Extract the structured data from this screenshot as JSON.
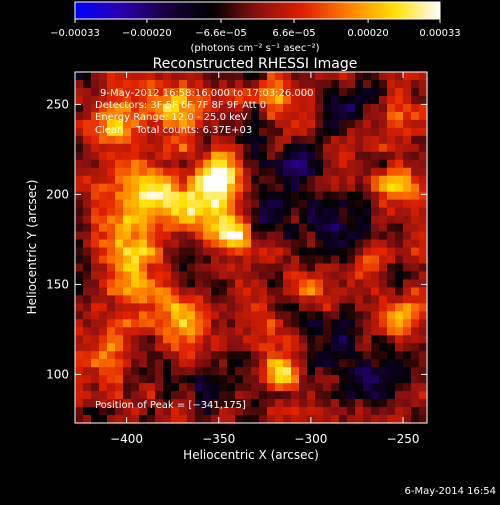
{
  "chart_data": {
    "type": "heatmap",
    "title": "Reconstructed RHESSI Image",
    "xlabel": "Heliocentric X (arcsec)",
    "ylabel": "Heliocentric Y (arcsec)",
    "xlim": [
      -428,
      -237
    ],
    "ylim": [
      73,
      268
    ],
    "xticks": [
      -400,
      -350,
      -300,
      -250
    ],
    "yticks": [
      100,
      150,
      200,
      250
    ],
    "xtick_labels": [
      "−400",
      "−350",
      "−300",
      "−250"
    ],
    "ytick_labels": [
      "100",
      "150",
      "200",
      "250"
    ],
    "colorbar": {
      "range": [
        -0.00033,
        0.00033
      ],
      "ticks": [
        -0.00033,
        -0.0002,
        -6.6e-05,
        6.6e-05,
        0.0002,
        0.00033
      ],
      "tick_labels": [
        "−0.00033",
        "−0.00020",
        "−6.6e−05",
        "6.6e−05",
        "0.00020",
        "0.00033"
      ],
      "unit_label": "(photons cm⁻² s⁻¹ asec⁻²)"
    },
    "annotations": [
      "9-May-2012 16:58:16.000 to 17:03:26.000",
      "Detectors: 3F 5F 6F 7F 8F 9F Att 0",
      "Energy Range: 12.0 - 25.0 keV",
      "Clean    Total counts: 6.37E+03"
    ],
    "peak_label": "Position of Peak = [−341,175]",
    "peak_position": [
      -341,
      175
    ],
    "sources": [
      {
        "x": -342,
        "y": 178,
        "amp": 1.0,
        "sigma": 9
      },
      {
        "x": -350,
        "y": 210,
        "amp": 0.9,
        "sigma": 10
      },
      {
        "x": -362,
        "y": 192,
        "amp": 0.75,
        "sigma": 9
      },
      {
        "x": -390,
        "y": 205,
        "amp": 0.75,
        "sigma": 12
      },
      {
        "x": -408,
        "y": 238,
        "amp": 0.55,
        "sigma": 11
      },
      {
        "x": -375,
        "y": 245,
        "amp": 0.6,
        "sigma": 10
      },
      {
        "x": -400,
        "y": 175,
        "amp": 0.6,
        "sigma": 12
      },
      {
        "x": -395,
        "y": 145,
        "amp": 0.55,
        "sigma": 11
      },
      {
        "x": -370,
        "y": 128,
        "amp": 0.55,
        "sigma": 9
      },
      {
        "x": -410,
        "y": 110,
        "amp": 0.5,
        "sigma": 9
      },
      {
        "x": -318,
        "y": 100,
        "amp": 0.8,
        "sigma": 7
      },
      {
        "x": -252,
        "y": 205,
        "amp": 0.7,
        "sigma": 8
      },
      {
        "x": -250,
        "y": 130,
        "amp": 0.6,
        "sigma": 8
      },
      {
        "x": -258,
        "y": 243,
        "amp": 0.45,
        "sigma": 8
      },
      {
        "x": -318,
        "y": 255,
        "amp": 0.5,
        "sigma": 8
      },
      {
        "x": -298,
        "y": 148,
        "amp": 0.4,
        "sigma": 8
      },
      {
        "x": -270,
        "y": 165,
        "amp": 0.35,
        "sigma": 7
      },
      {
        "x": -330,
        "y": 135,
        "amp": 0.45,
        "sigma": 8
      },
      {
        "x": -305,
        "y": 215,
        "amp": -0.55,
        "sigma": 10
      },
      {
        "x": -325,
        "y": 190,
        "amp": -0.5,
        "sigma": 10
      },
      {
        "x": -285,
        "y": 180,
        "amp": -0.45,
        "sigma": 12
      },
      {
        "x": -265,
        "y": 100,
        "amp": -0.5,
        "sigma": 10
      },
      {
        "x": -290,
        "y": 120,
        "amp": -0.4,
        "sigma": 10
      },
      {
        "x": -335,
        "y": 230,
        "amp": -0.35,
        "sigma": 8
      },
      {
        "x": -355,
        "y": 90,
        "amp": -0.35,
        "sigma": 8
      },
      {
        "x": -280,
        "y": 250,
        "amp": -0.4,
        "sigma": 9
      }
    ],
    "footer_date": "6-May-2014 16:54"
  },
  "colors": {
    "background": "#000000",
    "axes": "#ffffff",
    "colormap_stops": [
      "#0000ff",
      "#2a00b0",
      "#180040",
      "#000000",
      "#8a1010",
      "#e02000",
      "#ff8000",
      "#ffe000",
      "#ffffff"
    ]
  }
}
